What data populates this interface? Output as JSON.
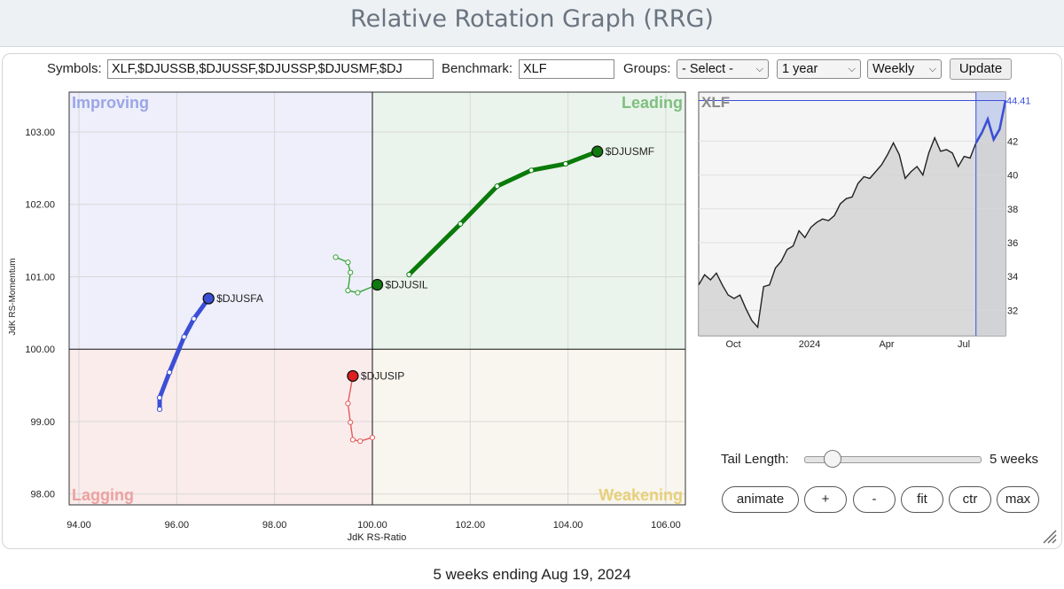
{
  "page": {
    "title": "Relative Rotation Graph (RRG)"
  },
  "controls": {
    "symbols_label": "Symbols:",
    "symbols_value": "XLF,$DJUSSB,$DJUSSF,$DJUSSP,$DJUSMF,$DJ",
    "benchmark_label": "Benchmark:",
    "benchmark_value": "XLF",
    "groups_label": "Groups:",
    "groups_value": "- Select -",
    "period_value": "1 year",
    "frequency_value": "Weekly",
    "update_label": "Update"
  },
  "quadrants": {
    "improving": "Improving",
    "leading": "Leading",
    "lagging": "Lagging",
    "weakening": "Weakening"
  },
  "tail": {
    "label": "Tail Length:",
    "value": "5 weeks",
    "weeks": 5
  },
  "buttons": {
    "animate": "animate",
    "zoom_in": "+",
    "zoom_out": "-",
    "fit": "fit",
    "center": "ctr",
    "max": "max"
  },
  "footer": "5 weeks ending Aug 19, 2024",
  "chart_data": [
    {
      "type": "scatter",
      "title": "",
      "xlabel": "JdK RS-Ratio",
      "ylabel": "JdK RS-Momentum",
      "xlim": [
        93.8,
        106.4
      ],
      "ylim": [
        97.85,
        103.55
      ],
      "x_ticks": [
        94,
        96,
        98,
        100,
        102,
        104,
        106
      ],
      "x_tick_labels": [
        "94.00",
        "96.00",
        "98.00",
        "100.00",
        "102.00",
        "104.00",
        "106.00"
      ],
      "y_ticks": [
        98,
        99,
        100,
        101,
        102,
        103
      ],
      "y_tick_labels": [
        "98.00",
        "99.00",
        "100.00",
        "101.00",
        "102.00",
        "103.00"
      ],
      "grid": true,
      "colors": {
        "improving": "#eeeffa",
        "leading": "#ebf4ec",
        "lagging": "#faeceb",
        "weakening": "#f8f6ee"
      },
      "series": [
        {
          "name": "$DJUSMF",
          "color": "#0a7a0a",
          "head_color": "#0f7a0f",
          "thick": true,
          "x": [
            100.75,
            101.8,
            102.55,
            103.25,
            103.95,
            104.6
          ],
          "y": [
            101.03,
            101.73,
            102.25,
            102.47,
            102.56,
            102.73
          ]
        },
        {
          "name": "$DJUSIL",
          "color": "#3aa33a",
          "head_color": "#0f7a0f",
          "thick": false,
          "x": [
            99.25,
            99.5,
            99.55,
            99.5,
            99.7,
            100.1
          ],
          "y": [
            101.27,
            101.2,
            101.06,
            100.81,
            100.78,
            100.89
          ]
        },
        {
          "name": "$DJUSFA",
          "color": "#3b4fd6",
          "head_color": "#3b4fd6",
          "thick": true,
          "x": [
            95.65,
            95.65,
            95.85,
            96.15,
            96.35,
            96.65
          ],
          "y": [
            99.17,
            99.33,
            99.68,
            100.17,
            100.42,
            100.7
          ]
        },
        {
          "name": "$DJUSIP",
          "color": "#e35a5a",
          "head_color": "#dd1f1f",
          "thick": false,
          "x": [
            100.0,
            99.75,
            99.6,
            99.55,
            99.5,
            99.6
          ],
          "y": [
            98.78,
            98.73,
            98.75,
            98.99,
            99.25,
            99.63
          ]
        }
      ]
    },
    {
      "type": "area",
      "title": "XLF",
      "x_tick_labels": [
        "Oct",
        "2024",
        "Apr",
        "Jul"
      ],
      "y_ticks": [
        32,
        34,
        36,
        38,
        40,
        42
      ],
      "y_tick_labels": [
        "32",
        "34",
        "36",
        "38",
        "40",
        "42"
      ],
      "ylim": [
        30.5,
        44.9
      ],
      "last_value_label": "44.41",
      "n_weeks": 53,
      "highlight_last_weeks": 5,
      "values": [
        33.5,
        34.1,
        33.8,
        34.2,
        33.5,
        32.9,
        32.7,
        32.9,
        32.1,
        31.4,
        31.0,
        33.4,
        33.5,
        34.5,
        34.9,
        35.6,
        35.8,
        36.7,
        36.3,
        36.9,
        37.2,
        37.4,
        37.3,
        37.6,
        38.3,
        38.6,
        38.7,
        39.5,
        39.9,
        39.8,
        40.2,
        40.6,
        41.2,
        41.9,
        41.2,
        39.8,
        40.2,
        40.5,
        40.0,
        41.3,
        42.2,
        41.4,
        41.5,
        41.3,
        40.5,
        41.1,
        41.0,
        41.9,
        42.5,
        43.3,
        42.1,
        42.7,
        44.4
      ]
    }
  ]
}
